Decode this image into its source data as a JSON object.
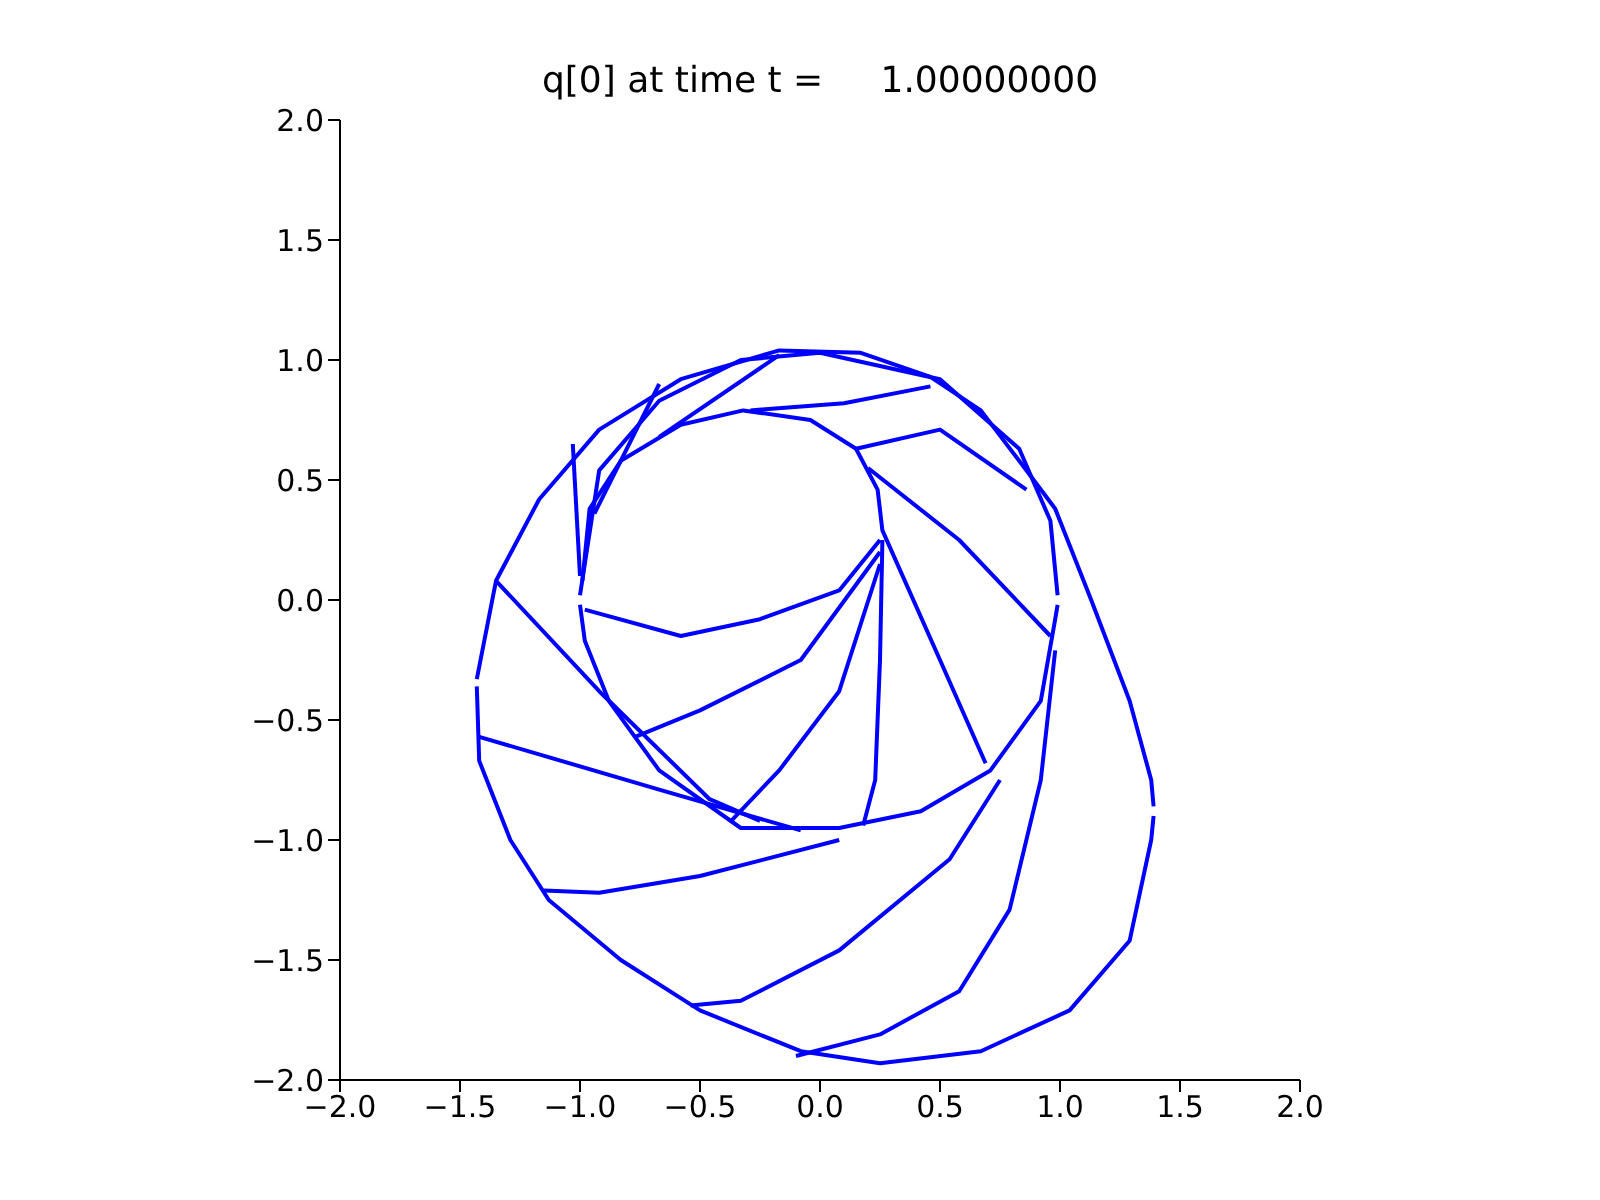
{
  "chart_data": {
    "type": "line",
    "title": "q[0] at time t =     1.00000000",
    "marker": "none",
    "line_style": "solid",
    "grid": false,
    "xlim": [
      -2,
      2
    ],
    "ylim": [
      -2,
      2
    ],
    "xticks": [
      {
        "value": -2,
        "label": "−2.0"
      },
      {
        "value": -1.5,
        "label": "−1.5"
      },
      {
        "value": -1,
        "label": "−1.0"
      },
      {
        "value": -0.5,
        "label": "−0.5"
      },
      {
        "value": 0,
        "label": "0.0"
      },
      {
        "value": 0.5,
        "label": "0.5"
      },
      {
        "value": 1,
        "label": "1.0"
      },
      {
        "value": 1.5,
        "label": "1.5"
      },
      {
        "value": 2,
        "label": "2.0"
      }
    ],
    "yticks": [
      {
        "value": -2,
        "label": "−2.0"
      },
      {
        "value": -1.5,
        "label": "−1.5"
      },
      {
        "value": -1,
        "label": "−1.0"
      },
      {
        "value": -0.5,
        "label": "−0.5"
      },
      {
        "value": 0,
        "label": "0.0"
      },
      {
        "value": 0.5,
        "label": "0.5"
      },
      {
        "value": 1,
        "label": "1.0"
      },
      {
        "value": 1.5,
        "label": "1.5"
      },
      {
        "value": 2,
        "label": "2.0"
      }
    ],
    "series": [
      {
        "color": "#0000ff",
        "x": [
          -1.43,
          -1.35,
          -1.17,
          -0.92,
          -0.58,
          -0.17,
          0.17,
          0.46,
          0.67,
          0.83,
          0.98,
          1.13,
          1.29,
          1.38,
          1.39
        ],
        "values": [
          -0.33,
          0.08,
          0.42,
          0.71,
          0.92,
          1.04,
          1.03,
          0.93,
          0.79,
          0.58,
          0.38,
          0,
          -0.42,
          -0.75,
          -0.86
        ]
      },
      {
        "color": "#0000ff",
        "x": [
          -1.43,
          -1.42,
          -1.29,
          -1.13,
          -0.83,
          -0.5,
          -0.08,
          0.25,
          0.67,
          1.04,
          1.29,
          1.38,
          1.39
        ],
        "values": [
          -0.36,
          -0.67,
          -1.0,
          -1.25,
          -1.5,
          -1.71,
          -1.88,
          -1.93,
          -1.88,
          -1.71,
          -1.42,
          -1.0,
          -0.9
        ]
      },
      {
        "color": "#0000ff",
        "x": [
          -1.0,
          -0.92,
          -0.67,
          -0.33,
          0.0,
          0.5,
          0.83,
          0.96,
          0.99
        ],
        "values": [
          0.02,
          0.54,
          0.83,
          1.0,
          1.03,
          0.92,
          0.63,
          0.33,
          0.02
        ]
      },
      {
        "color": "#0000ff",
        "x": [
          -1.0,
          -0.98,
          -0.88,
          -0.67,
          -0.33,
          0.08,
          0.42,
          0.71,
          0.92,
          0.98,
          0.99
        ],
        "values": [
          -0.02,
          -0.17,
          -0.42,
          -0.71,
          -0.95,
          -0.95,
          -0.88,
          -0.71,
          -0.42,
          -0.08,
          -0.02
        ]
      },
      {
        "color": "#0000ff",
        "x": [
          -0.99,
          -0.96,
          -0.83,
          -0.58,
          -0.32,
          -0.04,
          0.15,
          0.24,
          0.26,
          0.5,
          0.69
        ],
        "values": [
          0.08,
          0.38,
          0.58,
          0.73,
          0.79,
          0.75,
          0.63,
          0.46,
          0.29,
          -0.25,
          -0.68
        ]
      },
      {
        "color": "#0000ff",
        "x": [
          -0.98,
          -0.58,
          -0.25,
          0.08,
          0.25
        ],
        "values": [
          -0.04,
          -0.15,
          -0.08,
          0.04,
          0.25
        ]
      },
      {
        "color": "#0000ff",
        "x": [
          -0.77,
          -0.5,
          -0.08,
          0.25
        ],
        "values": [
          -0.57,
          -0.46,
          -0.25,
          0.2
        ]
      },
      {
        "color": "#0000ff",
        "x": [
          -0.37,
          -0.17,
          0.08,
          0.25
        ],
        "values": [
          -0.92,
          -0.71,
          -0.38,
          0.15
        ]
      },
      {
        "color": "#0000ff",
        "x": [
          0.18,
          0.23,
          0.25,
          0.26
        ],
        "values": [
          -0.94,
          -0.75,
          -0.25,
          0.25
        ]
      },
      {
        "color": "#0000ff",
        "x": [
          0.2,
          0.58,
          0.96
        ],
        "values": [
          0.55,
          0.25,
          -0.15
        ]
      },
      {
        "color": "#0000ff",
        "x": [
          0.15,
          0.5,
          0.86
        ],
        "values": [
          0.63,
          0.71,
          0.46
        ]
      },
      {
        "color": "#0000ff",
        "x": [
          -0.29,
          0.1,
          0.46
        ],
        "values": [
          0.79,
          0.82,
          0.89
        ]
      },
      {
        "color": "#0000ff",
        "x": [
          -0.67,
          -0.17
        ],
        "values": [
          0.68,
          1.02
        ]
      },
      {
        "color": "#0000ff",
        "x": [
          -1.03,
          -1.0
        ],
        "values": [
          0.65,
          0.1
        ]
      },
      {
        "color": "#0000ff",
        "x": [
          -0.94,
          -0.67
        ],
        "values": [
          0.36,
          0.9
        ]
      },
      {
        "color": "#0000ff",
        "x": [
          -1.35,
          -0.92,
          -0.46,
          -0.25
        ],
        "values": [
          0.08,
          -0.38,
          -0.83,
          -0.92
        ]
      },
      {
        "color": "#0000ff",
        "x": [
          -1.42,
          -0.67,
          -0.08
        ],
        "values": [
          -0.57,
          -0.79,
          -0.96
        ]
      },
      {
        "color": "#0000ff",
        "x": [
          -1.15,
          -0.92,
          -0.5,
          0.08
        ],
        "values": [
          -1.21,
          -1.22,
          -1.15,
          -1.0
        ]
      },
      {
        "color": "#0000ff",
        "x": [
          -0.54,
          -0.33,
          0.08,
          0.54,
          0.75
        ],
        "values": [
          -1.69,
          -1.67,
          -1.46,
          -1.08,
          -0.75
        ]
      },
      {
        "color": "#0000ff",
        "x": [
          -0.1,
          0.25,
          0.58,
          0.79,
          0.92,
          0.98
        ],
        "values": [
          -1.9,
          -1.81,
          -1.63,
          -1.29,
          -0.75,
          -0.21
        ]
      }
    ]
  }
}
